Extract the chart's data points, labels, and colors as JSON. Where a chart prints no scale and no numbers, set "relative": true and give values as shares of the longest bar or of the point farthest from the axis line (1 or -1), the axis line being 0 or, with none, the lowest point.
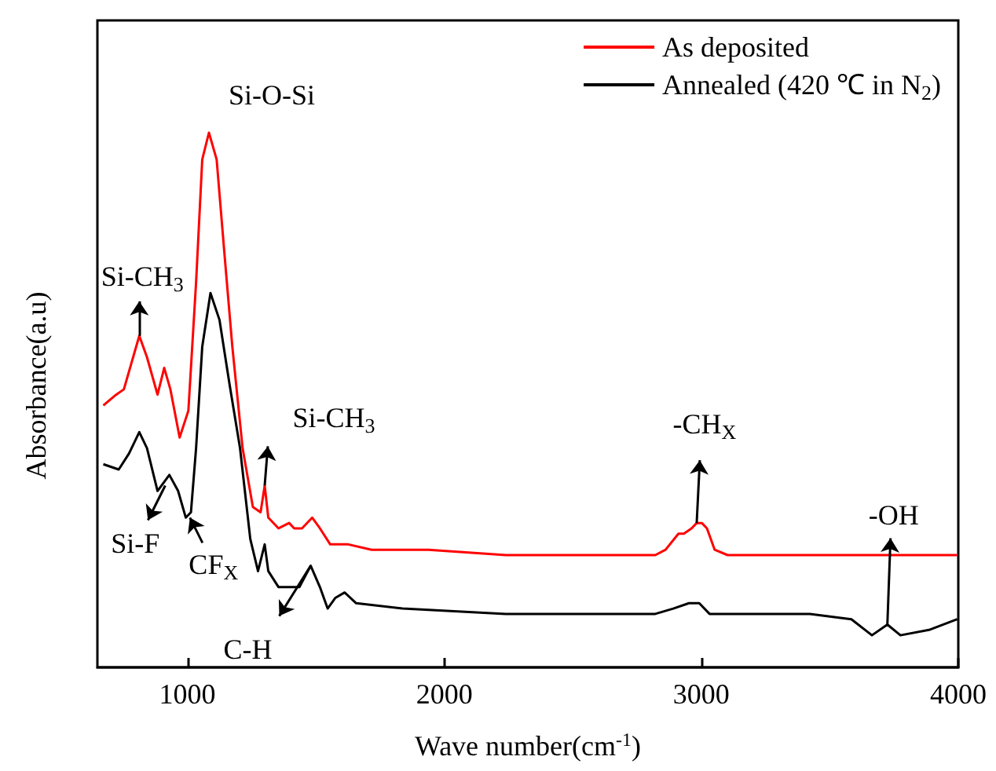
{
  "chart_data": {
    "type": "line",
    "relative": true,
    "xlabel": "Wave number(cm$^{-1}$)",
    "ylabel": "Absorbance(a.u)",
    "xlim": [
      650,
      4000
    ],
    "xticks": [
      1000,
      2000,
      3000,
      4000
    ],
    "grid": false,
    "legend": "top right",
    "series": [
      {
        "name": "As deposited",
        "color": "#ff0000",
        "x": [
          673,
          723,
          753,
          813,
          843,
          884,
          910,
          934,
          970,
          1004,
          1034,
          1058,
          1084,
          1114,
          1145,
          1175,
          1215,
          1255,
          1285,
          1301,
          1315,
          1355,
          1396,
          1416,
          1446,
          1486,
          1516,
          1556,
          1626,
          1717,
          1938,
          2239,
          2821,
          2861,
          2911,
          2932,
          2962,
          2982,
          3002,
          3022,
          3052,
          3102,
          3423,
          3684,
          3996
        ],
        "values": [
          0.49,
          0.51,
          0.52,
          0.62,
          0.58,
          0.51,
          0.56,
          0.52,
          0.43,
          0.48,
          0.72,
          0.95,
          1.0,
          0.95,
          0.77,
          0.6,
          0.41,
          0.3,
          0.29,
          0.34,
          0.28,
          0.26,
          0.27,
          0.26,
          0.26,
          0.28,
          0.26,
          0.23,
          0.23,
          0.22,
          0.22,
          0.21,
          0.21,
          0.22,
          0.25,
          0.25,
          0.26,
          0.27,
          0.27,
          0.26,
          0.22,
          0.21,
          0.21,
          0.21,
          0.21
        ]
      },
      {
        "name": "Annealed (420 ℃ in N$_{2}$)",
        "color": "#000000",
        "x": [
          673,
          733,
          773,
          813,
          843,
          884,
          930,
          964,
          994,
          1014,
          1034,
          1058,
          1090,
          1125,
          1164,
          1205,
          1245,
          1275,
          1301,
          1315,
          1355,
          1436,
          1480,
          1516,
          1546,
          1576,
          1612,
          1657,
          1837,
          2239,
          2821,
          2891,
          2952,
          2992,
          3032,
          3423,
          3584,
          3664,
          3724,
          3775,
          3886,
          3996
        ],
        "values": [
          0.38,
          0.37,
          0.4,
          0.44,
          0.41,
          0.33,
          0.36,
          0.33,
          0.28,
          0.29,
          0.41,
          0.6,
          0.7,
          0.65,
          0.53,
          0.41,
          0.24,
          0.18,
          0.23,
          0.18,
          0.15,
          0.15,
          0.19,
          0.15,
          0.11,
          0.13,
          0.14,
          0.12,
          0.11,
          0.1,
          0.1,
          0.11,
          0.12,
          0.12,
          0.1,
          0.1,
          0.09,
          0.06,
          0.08,
          0.06,
          0.07,
          0.09
        ]
      }
    ],
    "annotations": [
      {
        "text": "Si-O-Si",
        "x": 1084,
        "y": 1.0
      },
      {
        "text": "Si-CH$_{3}$",
        "x": 813,
        "y": 0.62
      },
      {
        "text": "Si-CH$_{3}$",
        "x": 1301,
        "y": 0.34
      },
      {
        "text": "-CH$_{X}$",
        "x": 2982,
        "y": 0.27
      },
      {
        "text": "-OH",
        "x": 3724,
        "y": 0.08
      },
      {
        "text": "Si-F",
        "x": 914,
        "y": 0.34
      },
      {
        "text": "CF$_{X}$",
        "x": 1010,
        "y": 0.28
      },
      {
        "text": "C-H",
        "x": 1480,
        "y": 0.19
      }
    ]
  }
}
